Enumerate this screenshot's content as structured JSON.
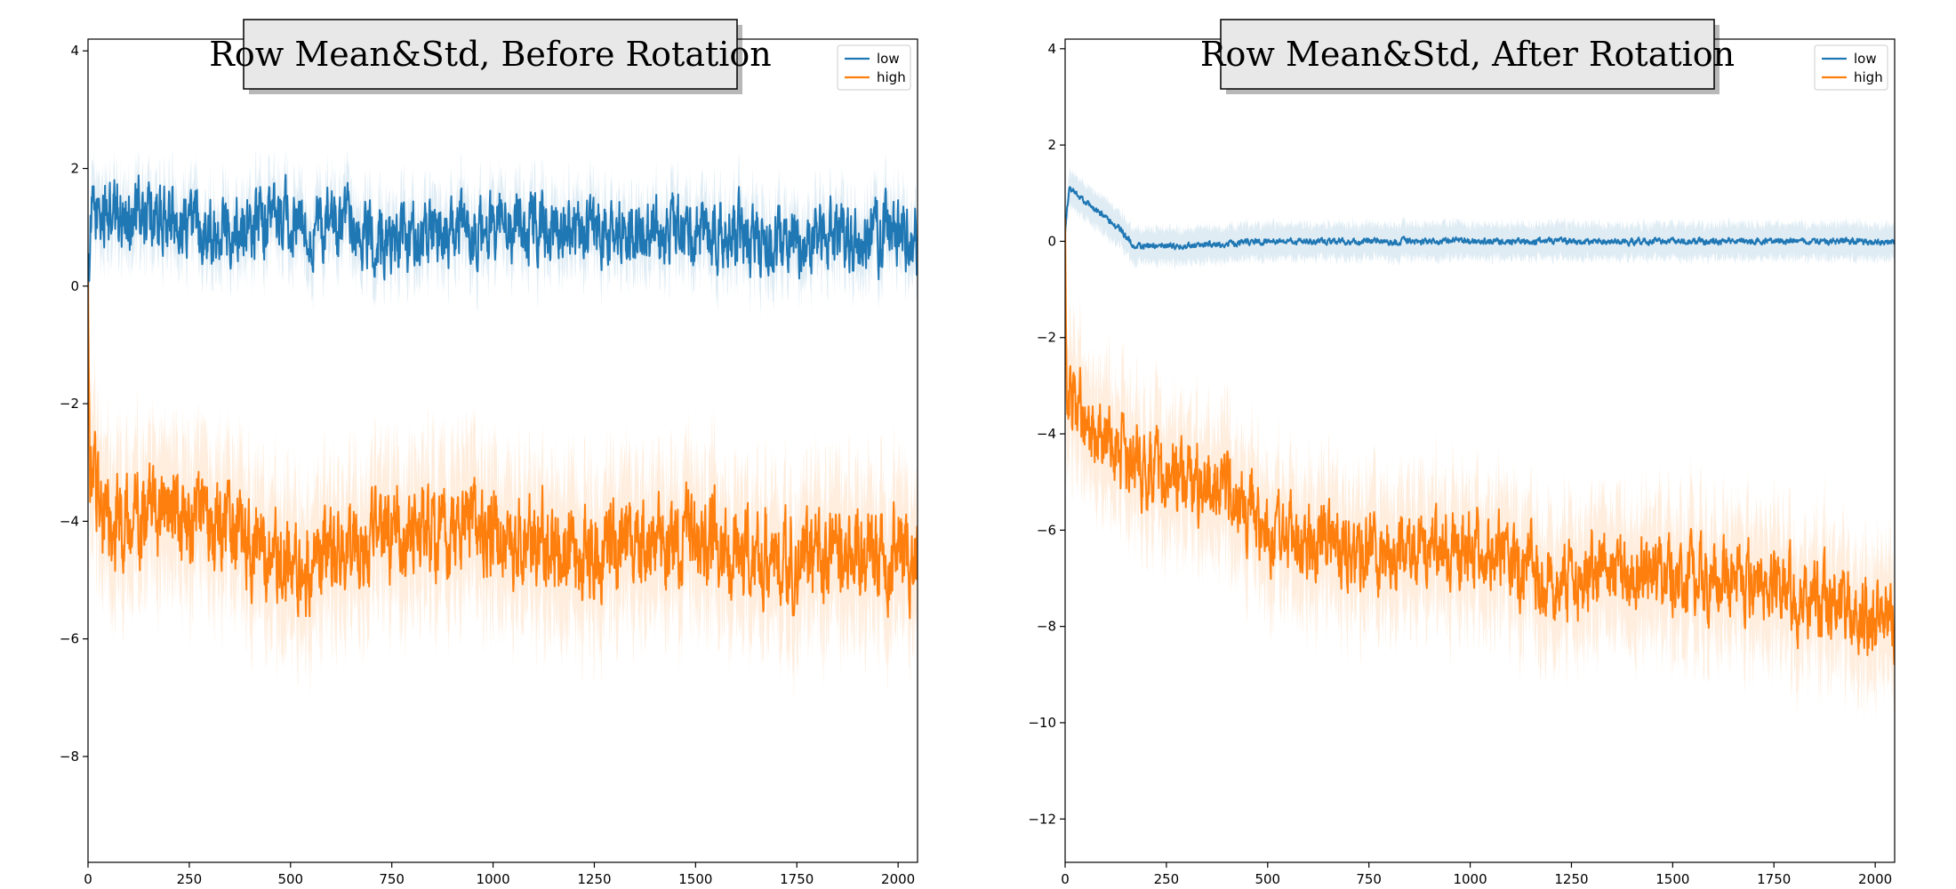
{
  "chart_data": [
    {
      "type": "line",
      "title": "Row Mean&Std, Before Rotation",
      "xlabel": "",
      "ylabel": "",
      "xlim": [
        0,
        2048
      ],
      "ylim": [
        -9.8,
        4.2
      ],
      "xticks": [
        0,
        250,
        500,
        750,
        1000,
        1250,
        1500,
        1750,
        2000
      ],
      "yticks": [
        -8,
        -6,
        -4,
        -2,
        0,
        2,
        4
      ],
      "legend_position": "top-right",
      "grid": false,
      "n_points": 2048,
      "series": [
        {
          "name": "low",
          "color": "#1f77b4",
          "mean_profile": [
            [
              0,
              0.3
            ],
            [
              10,
              1.2
            ],
            [
              100,
              1.2
            ],
            [
              300,
              1.0
            ],
            [
              500,
              1.1
            ],
            [
              750,
              0.8
            ],
            [
              1000,
              1.0
            ],
            [
              1250,
              0.9
            ],
            [
              1500,
              0.9
            ],
            [
              1750,
              0.8
            ],
            [
              2000,
              0.9
            ],
            [
              2048,
              0.8
            ]
          ],
          "noise_amplitude": 0.45,
          "std_band": 0.7
        },
        {
          "name": "high",
          "color": "#ff7f0e",
          "mean_profile": [
            [
              0,
              0.0
            ],
            [
              5,
              -2.8
            ],
            [
              30,
              -4.0
            ],
            [
              250,
              -3.9
            ],
            [
              500,
              -4.8
            ],
            [
              750,
              -4.2
            ],
            [
              1000,
              -4.2
            ],
            [
              1250,
              -4.5
            ],
            [
              1500,
              -4.3
            ],
            [
              1750,
              -4.6
            ],
            [
              2000,
              -4.5
            ],
            [
              2048,
              -4.8
            ]
          ],
          "noise_amplitude": 0.6,
          "std_band": 1.5
        }
      ]
    },
    {
      "type": "line",
      "title": "Row Mean&Std, After Rotation",
      "xlabel": "",
      "ylabel": "",
      "xlim": [
        0,
        2048
      ],
      "ylim": [
        -12.9,
        4.2
      ],
      "xticks": [
        0,
        250,
        500,
        750,
        1000,
        1250,
        1500,
        1750,
        2000
      ],
      "yticks": [
        -12,
        -10,
        -8,
        -6,
        -4,
        -2,
        0,
        2,
        4
      ],
      "legend_position": "top-right",
      "grid": false,
      "n_points": 2048,
      "series": [
        {
          "name": "low",
          "color": "#1f77b4",
          "mean_profile": [
            [
              0,
              0.2
            ],
            [
              10,
              1.1
            ],
            [
              80,
              0.6
            ],
            [
              130,
              0.3
            ],
            [
              170,
              -0.1
            ],
            [
              300,
              -0.1
            ],
            [
              500,
              0.0
            ],
            [
              1000,
              0.0
            ],
            [
              2048,
              0.0
            ]
          ],
          "noise_amplitude": 0.05,
          "std_band": 0.45
        },
        {
          "name": "high",
          "color": "#ff7f0e",
          "mean_profile": [
            [
              0,
              0.0
            ],
            [
              5,
              -3.0
            ],
            [
              50,
              -3.8
            ],
            [
              200,
              -4.8
            ],
            [
              400,
              -5.2
            ],
            [
              500,
              -6.0
            ],
            [
              750,
              -6.5
            ],
            [
              1000,
              -6.4
            ],
            [
              1250,
              -7.0
            ],
            [
              1500,
              -6.9
            ],
            [
              1750,
              -7.2
            ],
            [
              2000,
              -7.8
            ],
            [
              2048,
              -7.8
            ]
          ],
          "noise_amplitude": 0.6,
          "std_band": 1.6
        }
      ]
    }
  ]
}
